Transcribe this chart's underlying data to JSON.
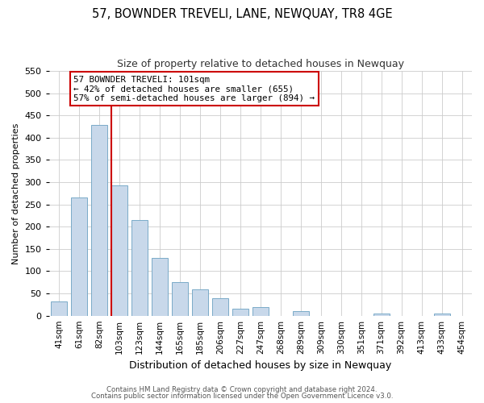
{
  "title": "57, BOWNDER TREVELI, LANE, NEWQUAY, TR8 4GE",
  "subtitle": "Size of property relative to detached houses in Newquay",
  "xlabel": "Distribution of detached houses by size in Newquay",
  "ylabel": "Number of detached properties",
  "bar_color": "#c8d8ea",
  "bar_edge_color": "#7aaac8",
  "categories": [
    "41sqm",
    "61sqm",
    "82sqm",
    "103sqm",
    "123sqm",
    "144sqm",
    "165sqm",
    "185sqm",
    "206sqm",
    "227sqm",
    "247sqm",
    "268sqm",
    "289sqm",
    "309sqm",
    "330sqm",
    "351sqm",
    "371sqm",
    "392sqm",
    "413sqm",
    "433sqm",
    "454sqm"
  ],
  "values": [
    32,
    265,
    428,
    292,
    215,
    130,
    76,
    60,
    40,
    15,
    20,
    0,
    10,
    0,
    0,
    0,
    5,
    0,
    0,
    5,
    0
  ],
  "ylim": [
    0,
    550
  ],
  "yticks": [
    0,
    50,
    100,
    150,
    200,
    250,
    300,
    350,
    400,
    450,
    500,
    550
  ],
  "vline_idx": 3,
  "vline_color": "#cc0000",
  "annotation_title": "57 BOWNDER TREVELI: 101sqm",
  "annotation_line1": "← 42% of detached houses are smaller (655)",
  "annotation_line2": "57% of semi-detached houses are larger (894) →",
  "annotation_box_color": "#ffffff",
  "annotation_box_edge": "#cc0000",
  "footer1": "Contains HM Land Registry data © Crown copyright and database right 2024.",
  "footer2": "Contains public sector information licensed under the Open Government Licence v3.0.",
  "background_color": "#ffffff",
  "grid_color": "#cccccc"
}
